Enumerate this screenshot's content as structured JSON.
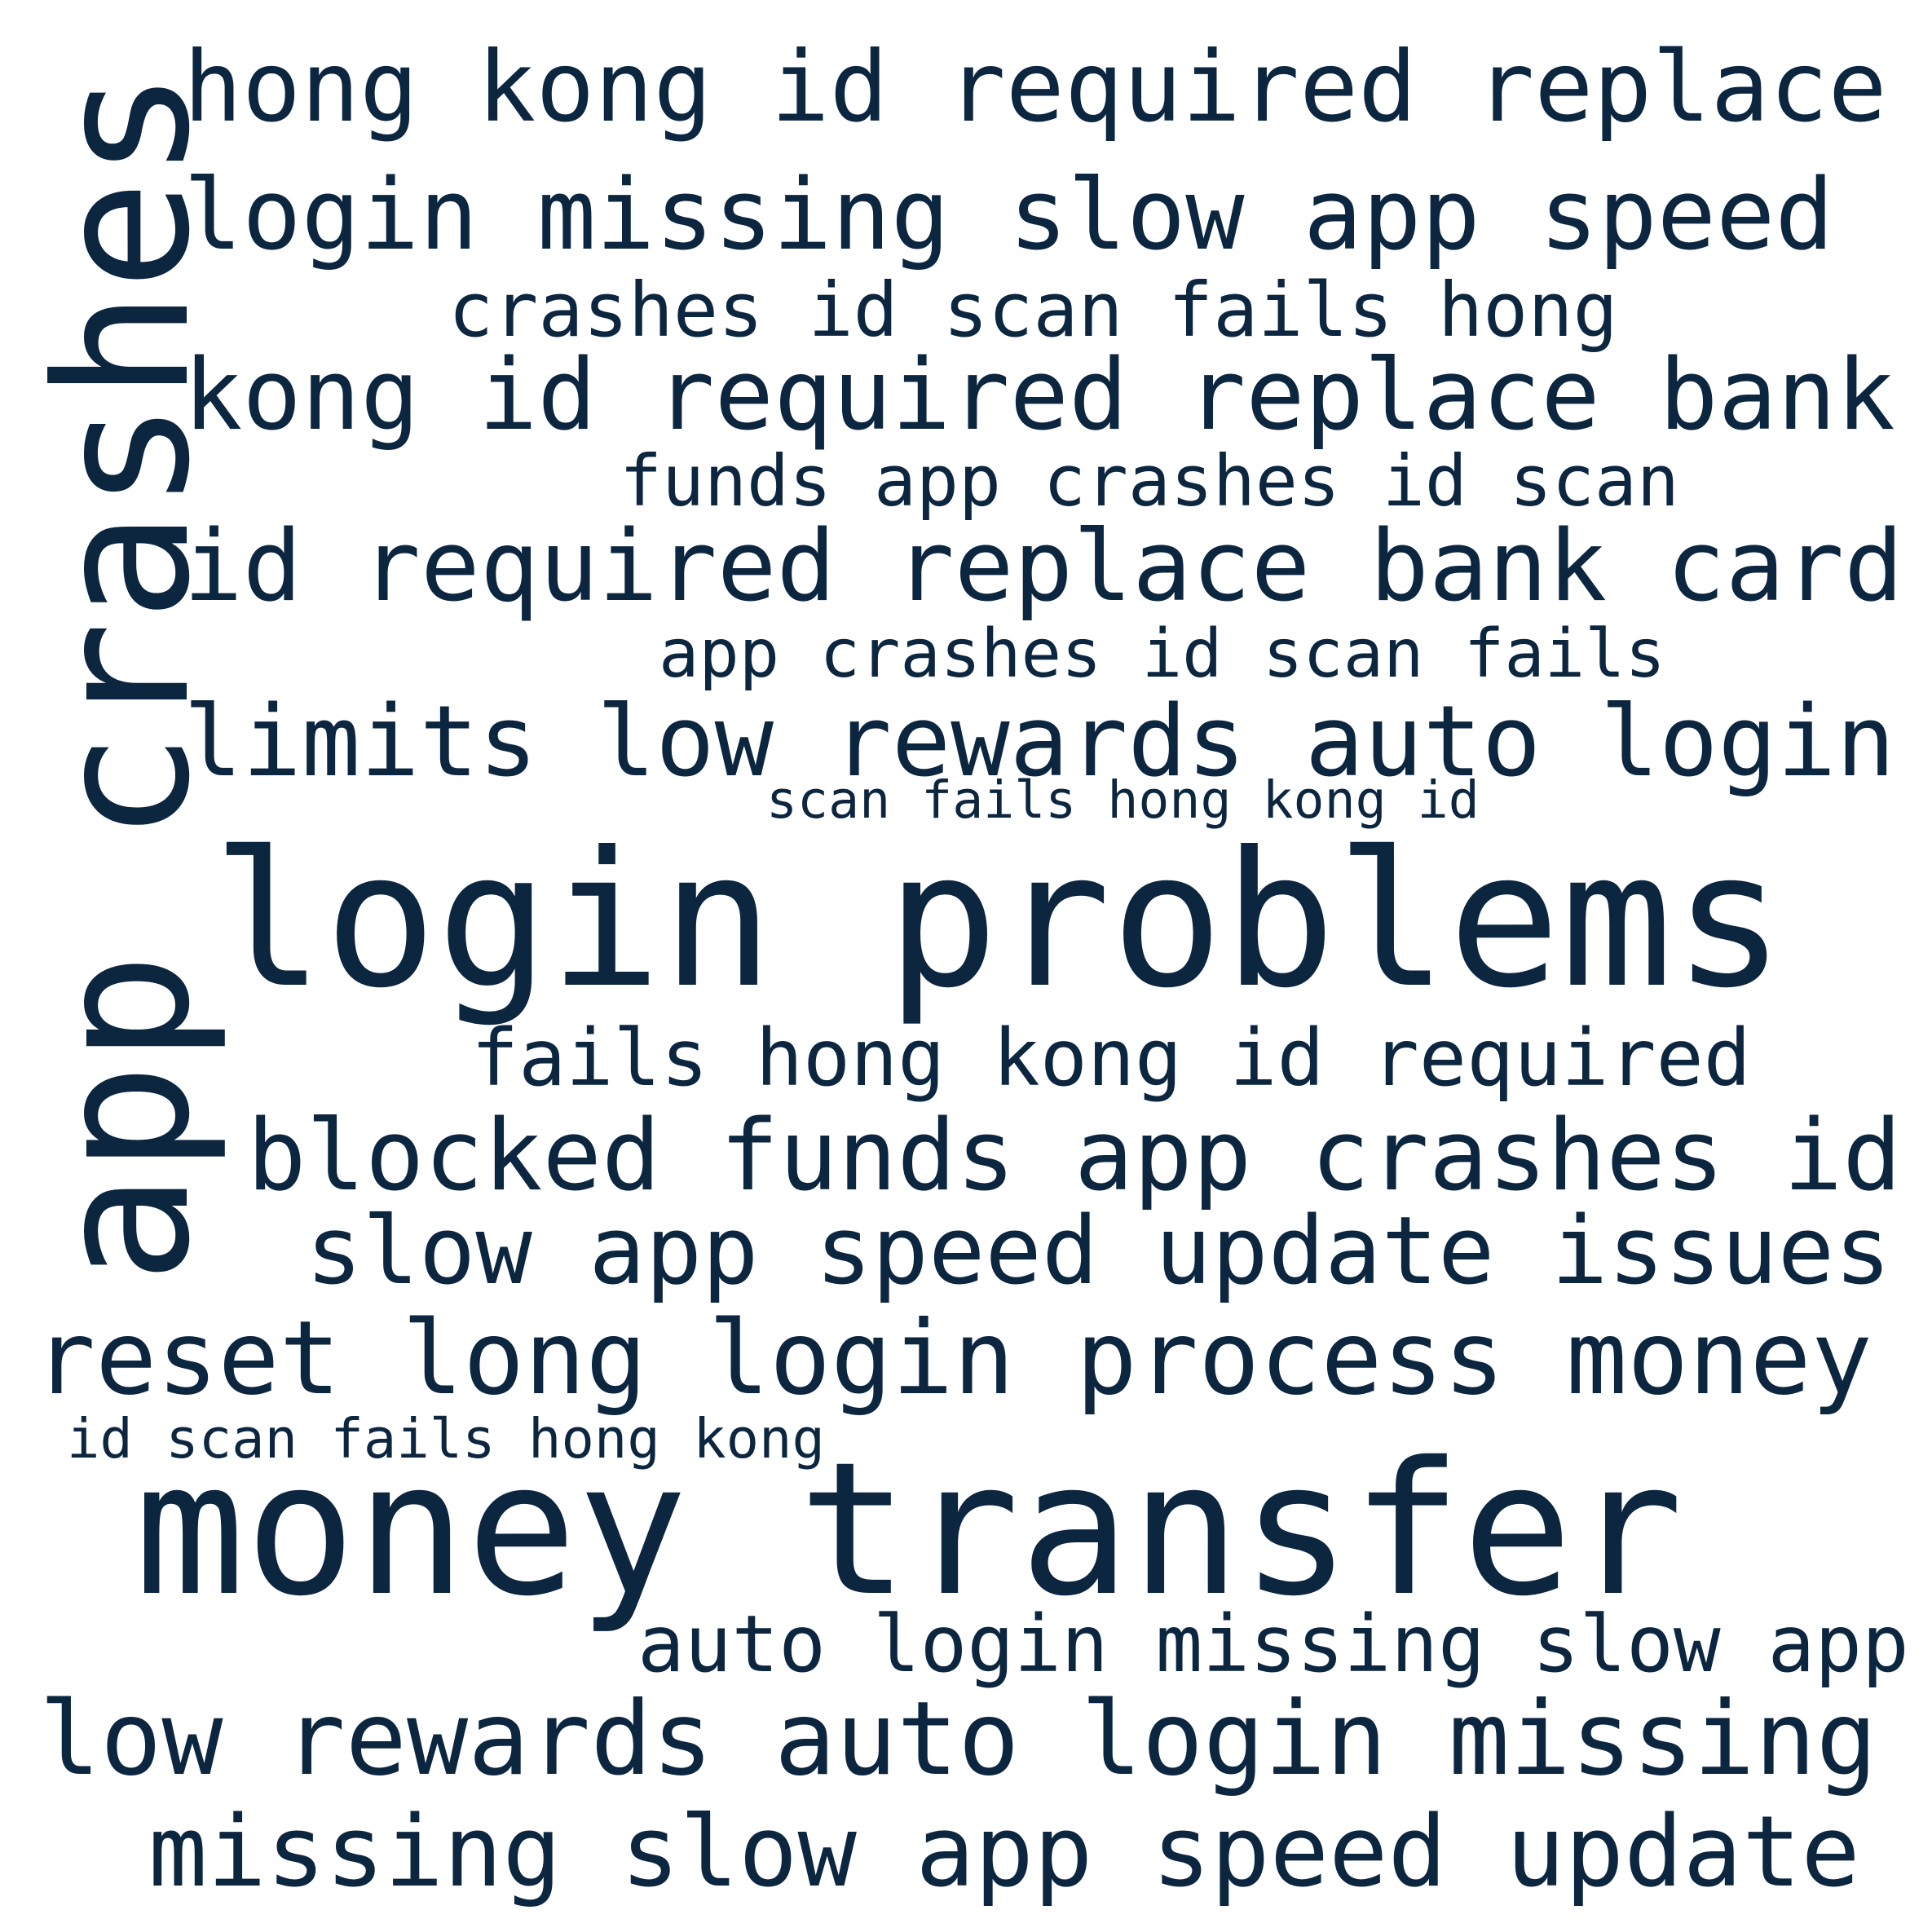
{
  "color": "#0d2640",
  "words": [
    {
      "id": "w01",
      "text": "app crashes"
    },
    {
      "id": "w02",
      "text": "hong kong id required replace"
    },
    {
      "id": "w03",
      "text": "login missing slow app speed"
    },
    {
      "id": "w04",
      "text": "crashes id scan fails hong"
    },
    {
      "id": "w05",
      "text": "kong id required replace bank"
    },
    {
      "id": "w06",
      "text": "funds app crashes id scan"
    },
    {
      "id": "w07",
      "text": "id required replace bank card"
    },
    {
      "id": "w08",
      "text": "app crashes id scan fails"
    },
    {
      "id": "w09",
      "text": "limits low rewards auto login"
    },
    {
      "id": "w10",
      "text": "scan fails hong kong id"
    },
    {
      "id": "w11",
      "text": "login problems"
    },
    {
      "id": "w12",
      "text": "fails hong kong id required"
    },
    {
      "id": "w13",
      "text": "blocked funds app crashes id"
    },
    {
      "id": "w14",
      "text": "slow app speed update issues"
    },
    {
      "id": "w15",
      "text": "reset long login process money"
    },
    {
      "id": "w16",
      "text": "id scan fails hong kong"
    },
    {
      "id": "w17",
      "text": "money transfer"
    },
    {
      "id": "w18",
      "text": "auto login missing slow app"
    },
    {
      "id": "w19",
      "text": "low rewards auto login missing"
    },
    {
      "id": "w20",
      "text": "missing slow app speed update"
    }
  ]
}
